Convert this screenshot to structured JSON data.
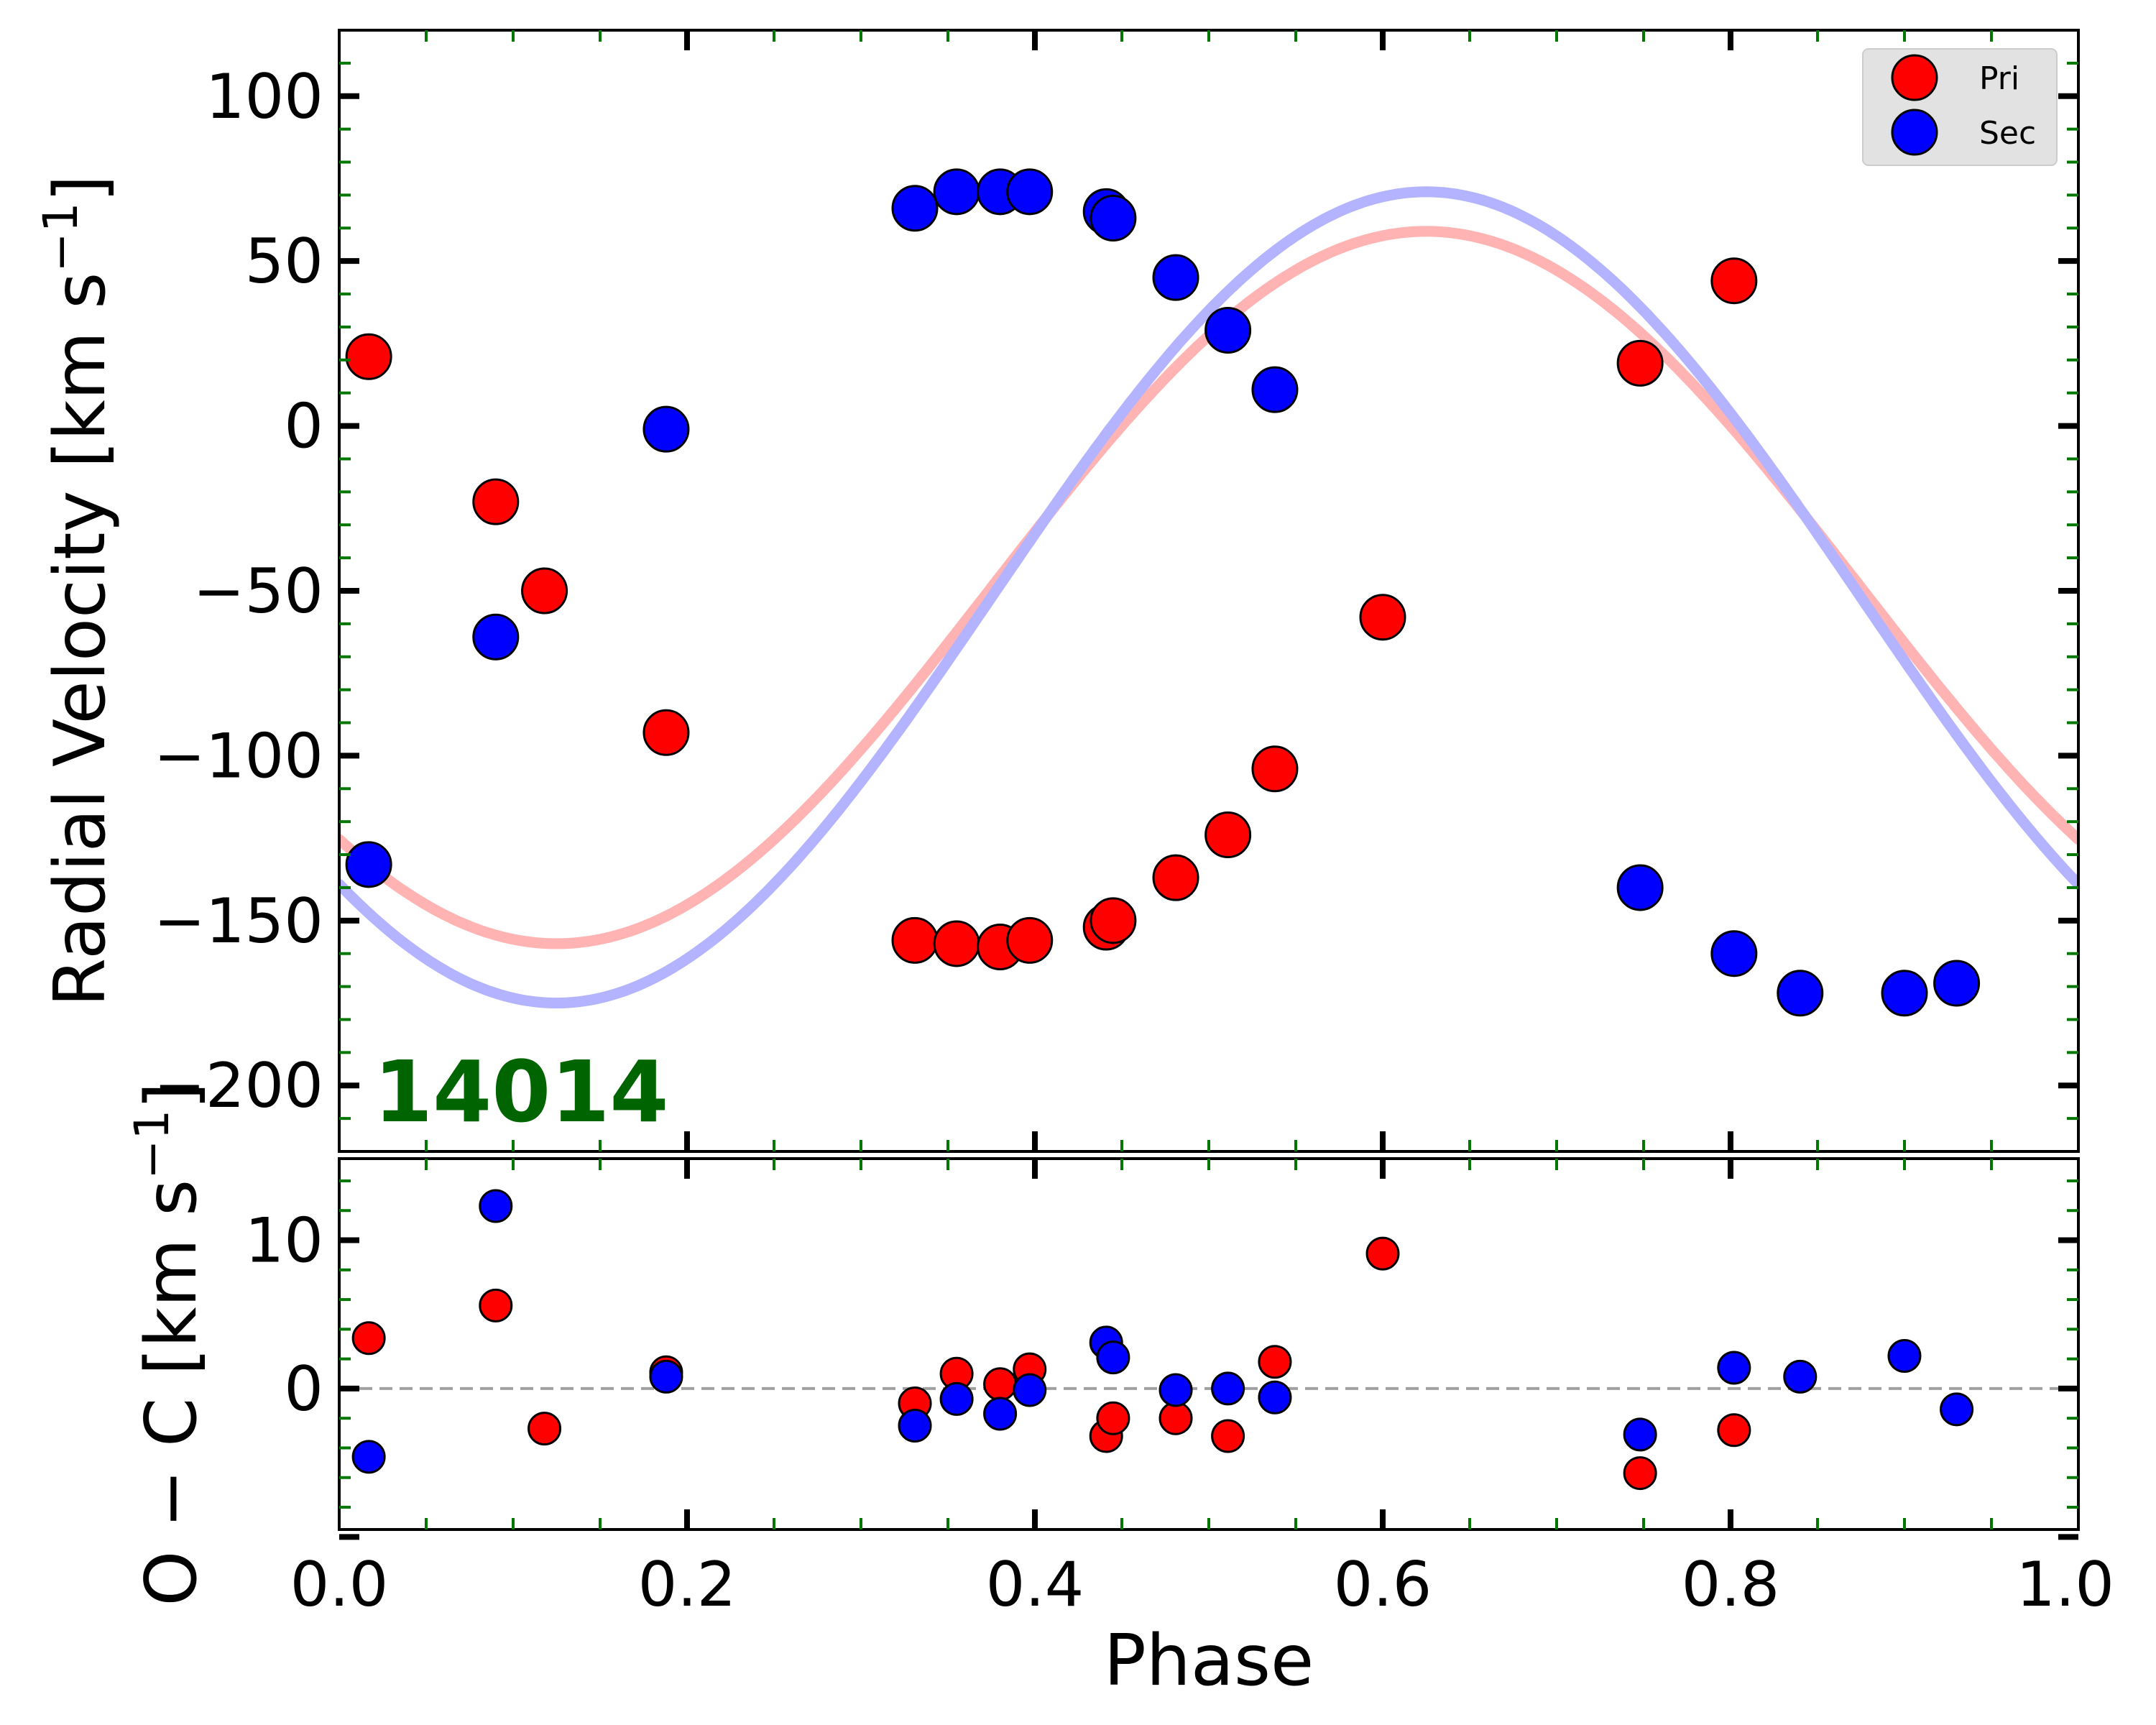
{
  "chart_data": [
    {
      "type": "scatter",
      "panel": "top",
      "star_id": "14014",
      "star_id_color": "#006400",
      "xlabel": "",
      "ylabel": "Radial Velocity [km s^{-1}]",
      "xlim": [
        0.0,
        1.0
      ],
      "ylim": [
        -220,
        120
      ],
      "yticks": [
        {
          "value": 100,
          "label": "100"
        },
        {
          "value": 50,
          "label": "50"
        },
        {
          "value": 0,
          "label": "0"
        },
        {
          "value": -50,
          "label": "−50"
        },
        {
          "value": -100,
          "label": "−100"
        },
        {
          "value": -150,
          "label": "−150"
        },
        {
          "value": -200,
          "label": "−200"
        }
      ],
      "legend": {
        "position": "top-right",
        "entries": [
          "Pri",
          "Sec"
        ]
      },
      "series": [
        {
          "name": "Pri",
          "color": "#ff0000",
          "points": [
            [
              0.017,
              21
            ],
            [
              0.09,
              -23
            ],
            [
              0.118,
              -50
            ],
            [
              0.188,
              -93
            ],
            [
              0.331,
              -156
            ],
            [
              0.355,
              -157
            ],
            [
              0.38,
              -158
            ],
            [
              0.397,
              -156
            ],
            [
              0.441,
              -152
            ],
            [
              0.445,
              -150
            ],
            [
              0.481,
              -137
            ],
            [
              0.511,
              -124
            ],
            [
              0.538,
              -104
            ],
            [
              0.6,
              -58
            ],
            [
              0.748,
              19
            ],
            [
              0.802,
              44
            ]
          ]
        },
        {
          "name": "Sec",
          "color": "#0000ff",
          "points": [
            [
              0.017,
              -133
            ],
            [
              0.09,
              -64
            ],
            [
              0.188,
              -1
            ],
            [
              0.331,
              66
            ],
            [
              0.355,
              71
            ],
            [
              0.38,
              71
            ],
            [
              0.397,
              71
            ],
            [
              0.441,
              65
            ],
            [
              0.445,
              63
            ],
            [
              0.481,
              45
            ],
            [
              0.511,
              29
            ],
            [
              0.538,
              11
            ],
            [
              0.748,
              -140
            ],
            [
              0.802,
              -160
            ],
            [
              0.84,
              -172
            ],
            [
              0.9,
              -172
            ],
            [
              0.93,
              -169
            ]
          ]
        }
      ],
      "models": [
        {
          "series": "Pri",
          "color": "#ffb3b3",
          "gamma": -49,
          "K": 108,
          "phi0": 0.625
        },
        {
          "series": "Sec",
          "color": "#b3b3ff",
          "gamma": -52,
          "K": 123,
          "phi0": 0.625
        }
      ]
    },
    {
      "type": "scatter",
      "panel": "bottom",
      "xlabel": "Phase",
      "ylabel": "O − C [km s^{-1}]",
      "xlim": [
        0.0,
        1.0
      ],
      "ylim": [
        -9.5,
        15.5
      ],
      "xticks": [
        {
          "value": 0.0,
          "label": "0.0"
        },
        {
          "value": 0.2,
          "label": "0.2"
        },
        {
          "value": 0.4,
          "label": "0.4"
        },
        {
          "value": 0.6,
          "label": "0.6"
        },
        {
          "value": 0.8,
          "label": "0.8"
        },
        {
          "value": 1.0,
          "label": "1.0"
        }
      ],
      "yticks": [
        {
          "value": 10,
          "label": "10"
        },
        {
          "value": 0,
          "label": "0"
        }
      ],
      "zero_line": {
        "value": 0,
        "style": "dashed",
        "color": "#a0a0a0"
      },
      "series": [
        {
          "name": "Pri",
          "color": "#ff0000",
          "points": [
            [
              0.017,
              3.4
            ],
            [
              0.09,
              5.6
            ],
            [
              0.118,
              -2.7
            ],
            [
              0.188,
              1.1
            ],
            [
              0.331,
              -1.0
            ],
            [
              0.355,
              1.0
            ],
            [
              0.38,
              0.3
            ],
            [
              0.397,
              1.3
            ],
            [
              0.441,
              -3.2
            ],
            [
              0.445,
              -2.0
            ],
            [
              0.481,
              -2.0
            ],
            [
              0.511,
              -3.2
            ],
            [
              0.538,
              1.8
            ],
            [
              0.6,
              9.1
            ],
            [
              0.748,
              -5.7
            ],
            [
              0.802,
              -2.8
            ]
          ]
        },
        {
          "name": "Sec",
          "color": "#0000ff",
          "points": [
            [
              0.017,
              -4.6
            ],
            [
              0.09,
              12.3
            ],
            [
              0.188,
              0.8
            ],
            [
              0.331,
              -2.5
            ],
            [
              0.355,
              -0.7
            ],
            [
              0.38,
              -1.7
            ],
            [
              0.397,
              -0.1
            ],
            [
              0.441,
              3.1
            ],
            [
              0.445,
              2.1
            ],
            [
              0.481,
              -0.1
            ],
            [
              0.511,
              0.0
            ],
            [
              0.538,
              -0.6
            ],
            [
              0.748,
              -3.1
            ],
            [
              0.802,
              1.4
            ],
            [
              0.84,
              0.8
            ],
            [
              0.9,
              2.2
            ],
            [
              0.93,
              -1.4
            ]
          ]
        }
      ]
    }
  ]
}
